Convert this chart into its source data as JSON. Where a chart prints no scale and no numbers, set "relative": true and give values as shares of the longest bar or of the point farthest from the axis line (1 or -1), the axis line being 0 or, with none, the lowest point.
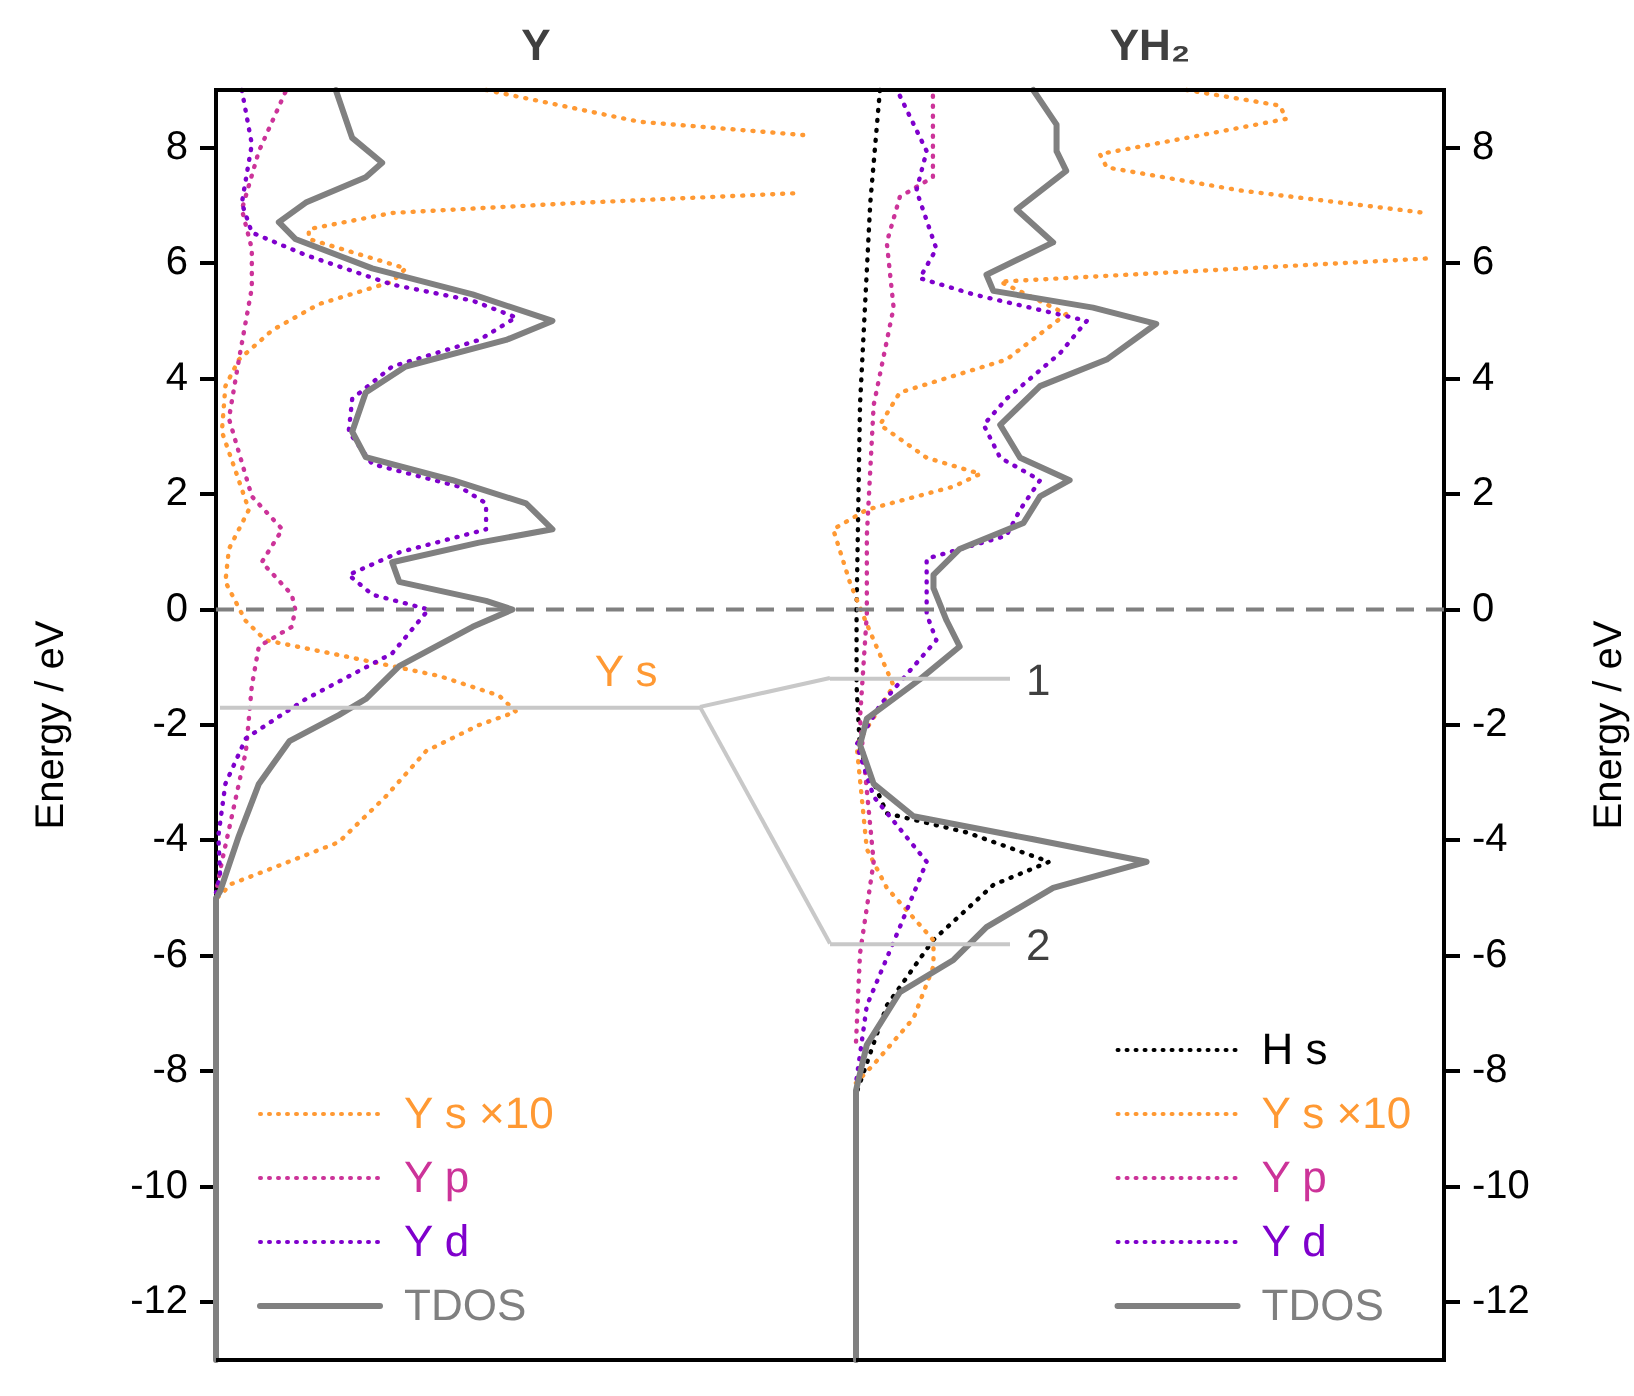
{
  "chart_data": [
    {
      "type": "line",
      "title": "Y",
      "ylabel": "Energy / eV",
      "orientation": "horizontal",
      "relative": true,
      "ylim": [
        -13,
        9
      ],
      "yticks": [
        -12,
        -10,
        -8,
        -6,
        -4,
        -2,
        0,
        2,
        4,
        6,
        8
      ],
      "tick_labels": "y",
      "grid": false,
      "legend": "bottom left",
      "ref_lines": [
        {
          "axis": "y",
          "value": 0,
          "color": "#808080",
          "line_style": "dashed"
        },
        {
          "axis": "y",
          "value": -1.7,
          "color": "#c8c8c8",
          "line_style": "solid"
        }
      ],
      "annotations": [
        "Y s"
      ],
      "series": [
        {
          "name": "Y s ×10",
          "color": "#ff9933",
          "line_style": "dotted",
          "x": [
            9.0,
            8.45,
            8.22,
            7.7,
            7.21,
            7.04,
            6.87,
            6.59,
            6.42,
            6.19,
            5.91,
            5.68,
            5.29,
            4.84,
            4.33,
            3.87,
            3.08,
            2.41,
            1.73,
            1.05,
            0.48,
            -0.19,
            -0.53,
            -0.81,
            -1.15,
            -1.49,
            -1.77,
            -2.0,
            -2.45,
            -3.24,
            -4.03,
            -4.48,
            -4.77,
            -4.94,
            -5.0
          ],
          "values": [
            0.46,
            0.721,
            1,
            null,
            0.983,
            0.608,
            0.3,
            0.158,
            0.158,
            0.232,
            0.323,
            0.3,
            0.175,
            0.096,
            0.039,
            0.016,
            0.01,
            0.033,
            0.056,
            0.022,
            0.016,
            0.05,
            0.084,
            0.22,
            0.38,
            0.482,
            0.511,
            0.448,
            0.358,
            0.289,
            0.209,
            0.096,
            0.022,
            0.01,
            0
          ]
        },
        {
          "name": "Y p",
          "color": "#cc3399",
          "line_style": "dotted",
          "x": [
            8.96,
            7.94,
            6.93,
            6.25,
            5.57,
            4.33,
            3.31,
            1.96,
            1.39,
            0.82,
            0.26,
            0,
            -0.3,
            -0.64,
            -1.32,
            -2.45,
            -3.58,
            -4.37,
            -4.9
          ],
          "values": [
            0.118,
            0.073,
            0.044,
            0.061,
            0.061,
            0.039,
            0.022,
            0.061,
            0.113,
            0.078,
            0.129,
            0.135,
            0.129,
            0.073,
            0.061,
            0.051,
            0.027,
            0.01,
            0
          ]
        },
        {
          "name": "Y d",
          "color": "#7f00cc",
          "line_style": "dotted",
          "x": [
            9.0,
            8.06,
            7.04,
            6.53,
            6.14,
            5.63,
            5.35,
            5.06,
            4.67,
            4.21,
            3.65,
            3.08,
            2.52,
            2.13,
            1.84,
            1.39,
            0.99,
            0.6,
            0.26,
            0,
            -0.76,
            -1.55,
            -2.23,
            -3.02,
            -3.92,
            -4.6,
            -4.9
          ],
          "values": [
            0.044,
            0.061,
            0.044,
            0.061,
            0.153,
            0.3,
            0.437,
            0.511,
            0.448,
            0.3,
            0.232,
            0.226,
            0.266,
            0.414,
            0.46,
            0.46,
            0.312,
            0.226,
            0.266,
            0.362,
            0.3,
            0.153,
            0.051,
            0.016,
            0.004,
            0.007,
            0
          ]
        },
        {
          "name": "TDOS",
          "color": "#808080",
          "line_style": "solid",
          "x": [
            9.0,
            8.17,
            7.74,
            7.49,
            7.05,
            6.71,
            6.42,
            5.91,
            5.46,
            5.0,
            4.67,
            4.21,
            3.76,
            3.08,
            2.64,
            2.24,
            1.84,
            1.39,
            1.16,
            0.82,
            0.48,
            0.15,
            0,
            -0.3,
            -0.98,
            -1.55,
            -1.83,
            -2.28,
            -3.02,
            -3.92,
            -4.88,
            -5.0,
            -13
          ],
          "values": [
            0.204,
            0.232,
            0.283,
            0.255,
            0.153,
            0.107,
            0.135,
            0.266,
            0.437,
            0.573,
            0.494,
            0.323,
            0.255,
            0.232,
            0.255,
            0.403,
            0.528,
            0.573,
            0.448,
            0.3,
            0.312,
            0.46,
            0.505,
            0.437,
            0.312,
            0.255,
            0.209,
            0.125,
            0.073,
            0.039,
            0.007,
            0,
            0
          ]
        }
      ]
    },
    {
      "type": "line",
      "title": "YH₂",
      "ylabel": "Energy / eV",
      "orientation": "horizontal",
      "relative": true,
      "ylim": [
        -13,
        9
      ],
      "yticks": [
        -12,
        -10,
        -8,
        -6,
        -4,
        -2,
        0,
        2,
        4,
        6,
        8
      ],
      "tick_labels": "y",
      "grid": false,
      "legend": "bottom right",
      "ref_lines": [
        {
          "axis": "y",
          "value": 0,
          "color": "#808080",
          "line_style": "dashed"
        },
        {
          "axis": "y",
          "value": -1.2,
          "color": "#c8c8c8",
          "line_style": "solid"
        },
        {
          "axis": "y",
          "value": -5.8,
          "color": "#c8c8c8",
          "line_style": "solid"
        }
      ],
      "annotations": [
        "1",
        "2"
      ],
      "series": [
        {
          "name": "H s",
          "color": "#000000",
          "line_style": "dotted",
          "x": [
            9.0,
            7.04,
            3.54,
            0,
            -1.32,
            -2.44,
            -3.53,
            -3.86,
            -4.37,
            -4.77,
            -5.73,
            -6.86,
            -8.2,
            -8.4
          ],
          "values": [
            0.042,
            0.025,
            0.007,
            0.001,
            0.001,
            0.007,
            0.054,
            0.194,
            0.339,
            0.241,
            0.135,
            0.054,
            0.007,
            0
          ]
        },
        {
          "name": "Y s ×10",
          "color": "#ff9933",
          "line_style": "dotted",
          "x": [
            9.0,
            8.73,
            8.5,
            8.17,
            7.89,
            7.66,
            7.26,
            6.87,
            6.5,
            6.08,
            5.68,
            5.12,
            4.33,
            3.76,
            3.2,
            2.63,
            2.35,
            2.13,
            1.73,
            1.39,
            0.48,
            0.03,
            -0.53,
            -1.32,
            -2.34,
            -4.15,
            -4.82,
            -5.73,
            -6.18,
            -7.08,
            -7.88,
            -8.2
          ],
          "values": [
            0.58,
            0.744,
            0.755,
            0.58,
            0.428,
            0.44,
            0.674,
            1,
            null,
            1,
            0.253,
            0.369,
            0.264,
            0.077,
            0.042,
            0.124,
            0.218,
            0.171,
            0.019,
            -0.04,
            -0.011,
            0.007,
            0.031,
            0.066,
            0.001,
            0.019,
            0.054,
            0.136,
            0.136,
            0.101,
            0.031,
            0
          ]
        },
        {
          "name": "Y p",
          "color": "#cc3399",
          "line_style": "dotted",
          "x": [
            8.9,
            7.49,
            7.15,
            6.36,
            5.23,
            3.54,
            1.28,
            -0.08,
            -1.89,
            -4.37,
            -5.96,
            -7.5
          ],
          "values": [
            0.135,
            0.135,
            0.077,
            0.054,
            0.066,
            0.031,
            0.019,
            0.019,
            0.007,
            0.031,
            0.007,
            0
          ]
        },
        {
          "name": "Y d",
          "color": "#7f00cc",
          "line_style": "dotted",
          "x": [
            8.9,
            7.94,
            7.26,
            6.25,
            5.74,
            5.46,
            5.0,
            4.44,
            3.65,
            3.2,
            2.63,
            2.24,
            1.73,
            1.28,
            0.88,
            -0.08,
            -0.53,
            -1.66,
            -2.34,
            -3.24,
            -4.37,
            -5.5,
            -6.86,
            -8.2
          ],
          "values": [
            0.077,
            0.124,
            0.106,
            0.141,
            0.112,
            0.206,
            0.405,
            0.358,
            0.264,
            0.224,
            0.253,
            0.323,
            0.288,
            0.264,
            0.124,
            0.124,
            0.141,
            0.042,
            0.001,
            0.031,
            0.124,
            0.077,
            0.019,
            0
          ]
        },
        {
          "name": "TDOS",
          "color": "#808080",
          "line_style": "solid",
          "x": [
            9.0,
            8.4,
            7.94,
            7.6,
            6.93,
            6.36,
            5.8,
            5.52,
            5.23,
            4.95,
            4.33,
            3.87,
            3.2,
            2.63,
            2.24,
            1.96,
            1.5,
            1.05,
            0.6,
            0.37,
            -0.19,
            -0.64,
            -1.21,
            -1.89,
            -2.34,
            -3.02,
            -3.58,
            -3.98,
            -4.37,
            -4.82,
            -5.5,
            -6.07,
            -6.63,
            -7.54,
            -8.33,
            -13
          ],
          "values": [
            0.311,
            0.352,
            0.352,
            0.369,
            0.282,
            0.346,
            0.229,
            0.241,
            0.416,
            0.527,
            0.44,
            0.323,
            0.253,
            0.288,
            0.375,
            0.323,
            0.294,
            0.182,
            0.136,
            0.136,
            0.159,
            0.182,
            0.112,
            0.019,
            0.007,
            0.031,
            0.101,
            0.311,
            0.51,
            0.346,
            0.229,
            0.171,
            0.077,
            0.019,
            0,
            0
          ]
        }
      ]
    }
  ]
}
